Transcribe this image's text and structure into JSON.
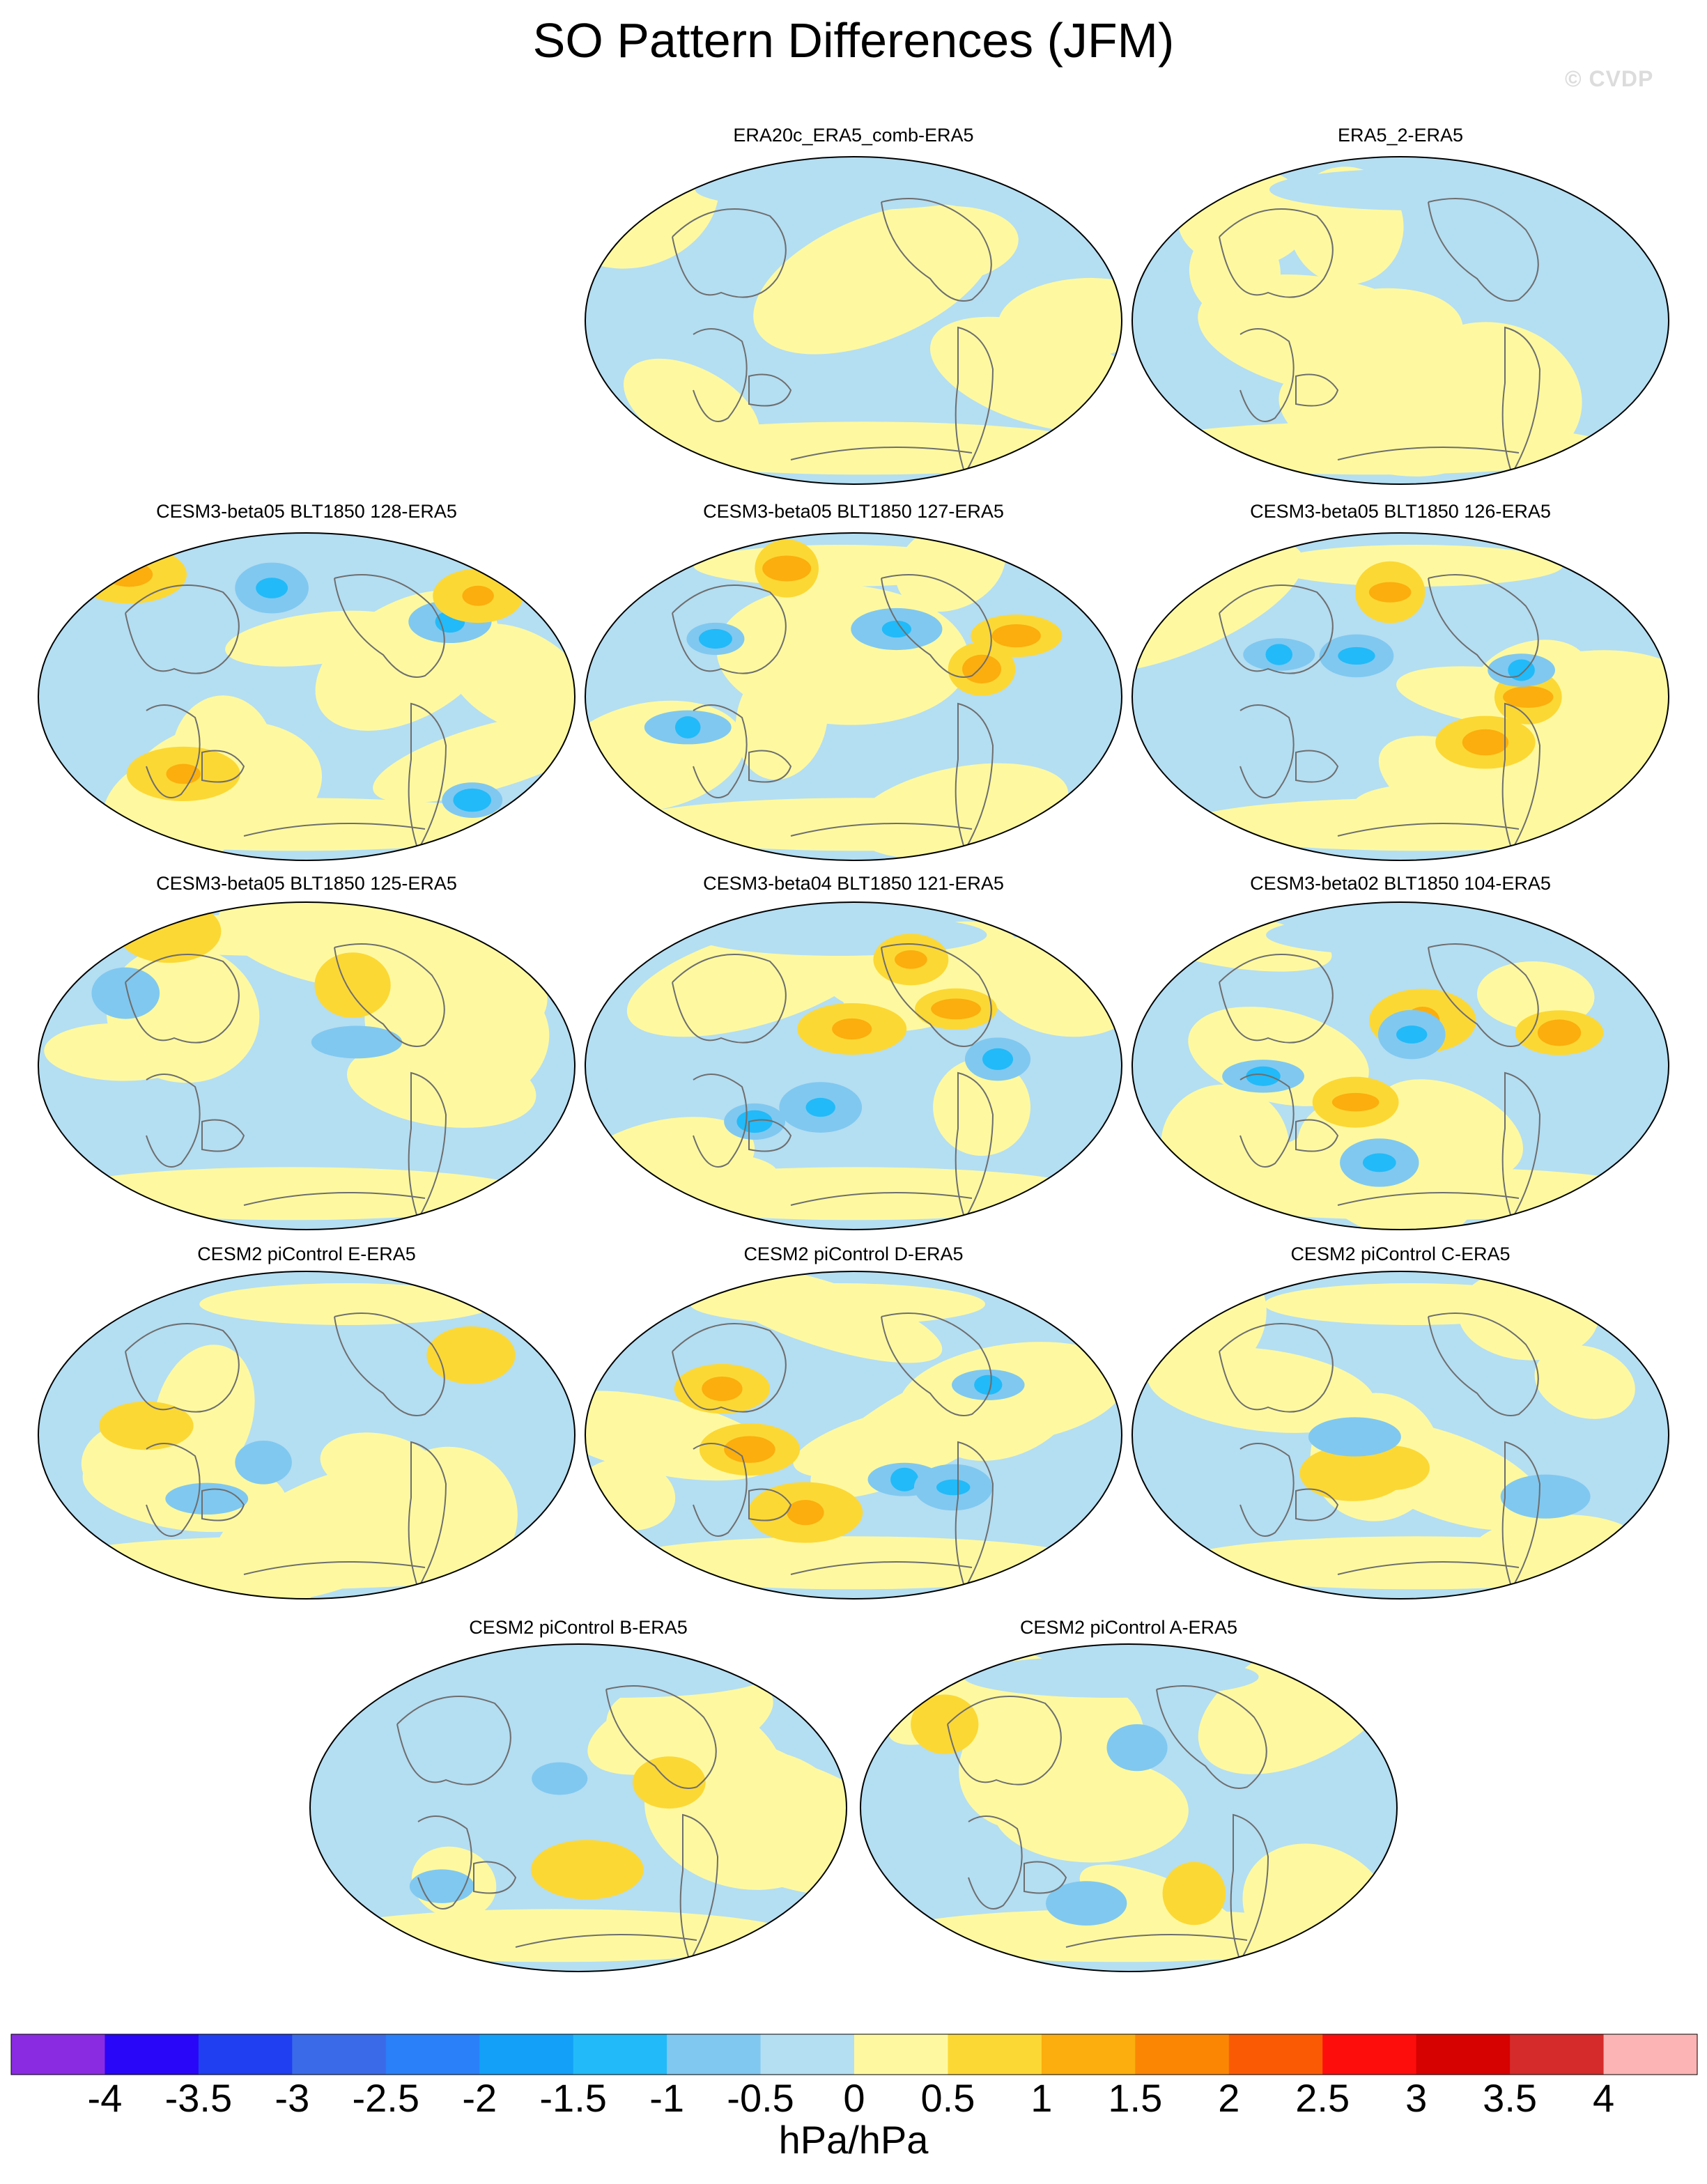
{
  "title": "SO Pattern Differences (JFM)",
  "watermark": "© CVDP",
  "panels": [
    {
      "label": "ERA20c_ERA5_comb-ERA5",
      "style": "mild"
    },
    {
      "label": "ERA5_2-ERA5",
      "style": "mild"
    },
    {
      "label": "CESM3-beta05 BLT1850 128-ERA5",
      "style": "strong"
    },
    {
      "label": "CESM3-beta05 BLT1850 127-ERA5",
      "style": "strong"
    },
    {
      "label": "CESM3-beta05 BLT1850 126-ERA5",
      "style": "strong"
    },
    {
      "label": "CESM3-beta05 BLT1850 125-ERA5",
      "style": "moderate"
    },
    {
      "label": "CESM3-beta04 BLT1850 121-ERA5",
      "style": "strong"
    },
    {
      "label": "CESM3-beta02 BLT1850 104-ERA5",
      "style": "strong"
    },
    {
      "label": "CESM2 piControl E-ERA5",
      "style": "moderate"
    },
    {
      "label": "CESM2 piControl D-ERA5",
      "style": "strong"
    },
    {
      "label": "CESM2 piControl C-ERA5",
      "style": "moderate"
    },
    {
      "label": "CESM2 piControl B-ERA5",
      "style": "moderate"
    },
    {
      "label": "CESM2 piControl A-ERA5",
      "style": "moderate"
    }
  ],
  "colorbar": {
    "units": "hPa/hPa",
    "ticks": [
      "-4",
      "-3.5",
      "-3",
      "-2.5",
      "-2",
      "-1.5",
      "-1",
      "-0.5",
      "0",
      "0.5",
      "1",
      "1.5",
      "2",
      "2.5",
      "3",
      "3.5",
      "4"
    ],
    "colors": [
      "#8a2be2",
      "#2a06f8",
      "#1f3ff0",
      "#3a6ae8",
      "#2a80f8",
      "#12a0f8",
      "#22baf8",
      "#80c8f0",
      "#b4def2",
      "#fef9a0",
      "#fcd835",
      "#fbae0d",
      "#fb8604",
      "#fb5a05",
      "#fe0d0d",
      "#d60101",
      "#d52b2b",
      "#fcb4b4"
    ]
  }
}
